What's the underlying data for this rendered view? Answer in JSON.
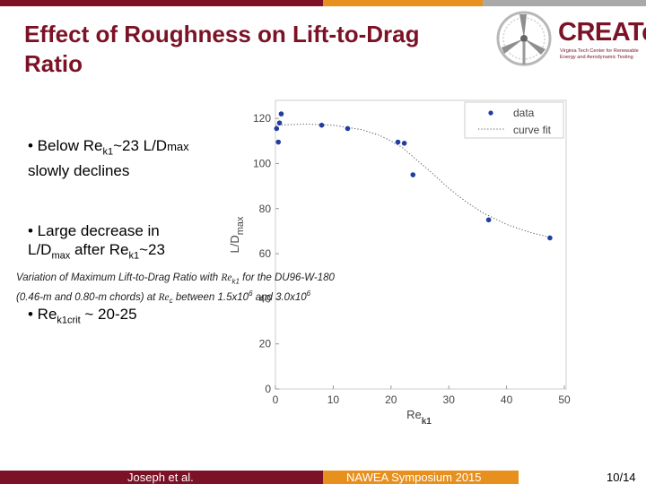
{
  "slide": {
    "title": "Effect of Roughness on Lift-to-Drag Ratio",
    "logo_text": "CREATe",
    "logo_subtitle": "Virginia Tech Center for Renewable Energy and Aerodynamic Testing",
    "bullets": [
      {
        "prefix": "• Below Re",
        "sub": "k1",
        "suffix": "~23 L/D",
        "sub2": "max",
        "line2": "slowly declines"
      },
      {
        "prefix": "• Large decrease in",
        "line2a": "L/D",
        "sub": "max",
        "line2b": " after Re",
        "sub2": "k1",
        "line2c": "~23"
      },
      {
        "prefix": "• Re",
        "sub": "k1crit",
        "suffix": " ~ 20-25"
      }
    ],
    "caption": {
      "line1_a": "Variation of Maximum Lift-to-Drag Ratio with ",
      "line1_b": "Re",
      "line1_b_sub": "k1",
      "line1_c": " for the DU96-W-180",
      "line2_a": "(0.46-m and 0.80-m chords) at ",
      "line2_b": "Re",
      "line2_b_sub": "c",
      "line2_c": "  between 1.5x10",
      "line2_exp1": "6",
      "line2_d": " and 3.0x10",
      "line2_exp2": "6"
    },
    "footer": {
      "author": "Joseph et al.",
      "event": "NAWEA Symposium 2015",
      "page": "10/14"
    },
    "colors": {
      "maroon": "#7b1226",
      "orange": "#e8901e",
      "gray": "#a9a9a9",
      "points": "#1f3ea0"
    }
  },
  "chart_data": {
    "type": "scatter",
    "xlabel": "Re",
    "xlabel_sub": "k1",
    "ylabel": "L/D",
    "ylabel_sub": "max",
    "xlim": [
      0,
      50
    ],
    "ylim": [
      0,
      120
    ],
    "xticks": [
      "0",
      "10",
      "20",
      "30",
      "40",
      "50"
    ],
    "yticks": [
      "0",
      "20",
      "40",
      "60",
      "80",
      "100",
      "120"
    ],
    "legend": {
      "position": "top-right",
      "entries": [
        "data",
        "curve fit"
      ]
    },
    "series": [
      {
        "name": "data",
        "mode": "markers",
        "x": [
          0.2,
          0.5,
          0.7,
          1.0,
          8.0,
          12.5,
          21.2,
          22.3,
          23.8,
          36.9,
          47.5
        ],
        "y": [
          115.5,
          109.5,
          118,
          122,
          117,
          115.5,
          109.5,
          109,
          95,
          75,
          67
        ]
      },
      {
        "name": "curve fit",
        "mode": "dotted-line",
        "x": [
          0,
          5,
          10,
          15,
          18,
          20,
          22,
          24,
          27,
          30,
          33,
          36,
          40,
          44,
          48
        ],
        "y": [
          117,
          117.5,
          117,
          115,
          112.5,
          110,
          107,
          102.5,
          96,
          89,
          83,
          78,
          73,
          69.5,
          67
        ]
      }
    ]
  }
}
